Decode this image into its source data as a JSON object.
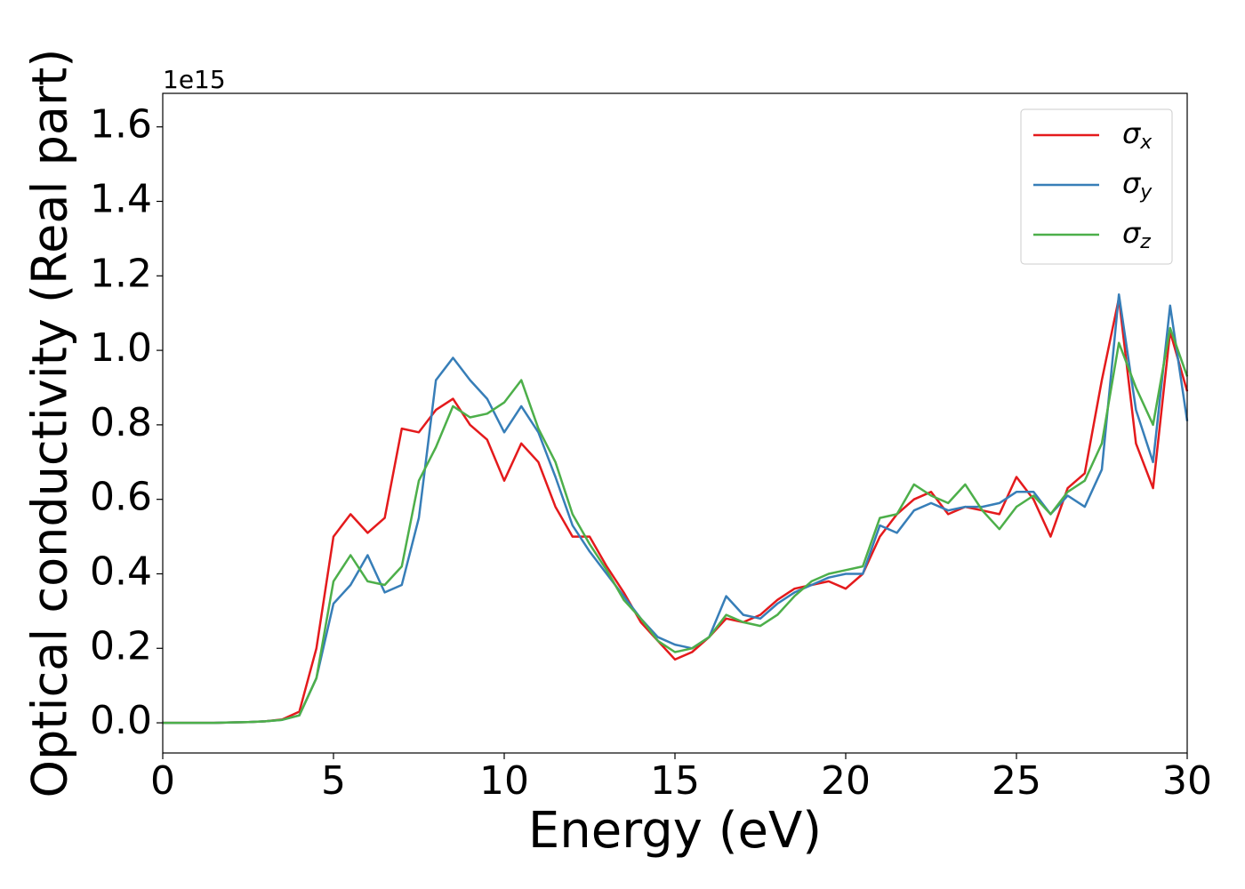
{
  "chart_data": {
    "type": "line",
    "xlabel": "Energy (eV)",
    "ylabel": "Optical conductivity (Real part)",
    "offset_label": "1e15",
    "x": [
      0,
      0.5,
      1,
      1.5,
      2,
      2.5,
      3,
      3.5,
      4,
      4.5,
      5,
      5.5,
      6,
      6.5,
      7,
      7.5,
      8,
      8.5,
      9,
      9.5,
      10,
      10.5,
      11,
      11.5,
      12,
      12.5,
      13,
      13.5,
      14,
      14.5,
      15,
      15.5,
      16,
      16.5,
      17,
      17.5,
      18,
      18.5,
      19,
      19.5,
      20,
      20.5,
      21,
      21.5,
      22,
      22.5,
      23,
      23.5,
      24,
      24.5,
      25,
      25.5,
      26,
      26.5,
      27,
      27.5,
      28,
      28.5,
      29,
      29.5,
      30
    ],
    "series": [
      {
        "name": "σ",
        "name_sub": "x",
        "color": "#e41a1c",
        "values": [
          0,
          0,
          0,
          0,
          0.001,
          0.002,
          0.004,
          0.009,
          0.03,
          0.2,
          0.5,
          0.56,
          0.51,
          0.55,
          0.79,
          0.78,
          0.84,
          0.87,
          0.8,
          0.76,
          0.65,
          0.75,
          0.7,
          0.58,
          0.5,
          0.5,
          0.42,
          0.35,
          0.27,
          0.22,
          0.17,
          0.19,
          0.23,
          0.28,
          0.27,
          0.29,
          0.33,
          0.36,
          0.37,
          0.38,
          0.36,
          0.4,
          0.5,
          0.56,
          0.6,
          0.62,
          0.56,
          0.58,
          0.57,
          0.56,
          0.66,
          0.6,
          0.5,
          0.63,
          0.67,
          0.92,
          1.14,
          0.75,
          0.63,
          1.05,
          0.89
        ]
      },
      {
        "name": "σ",
        "name_sub": "y",
        "color": "#377eb8",
        "values": [
          0,
          0,
          0,
          0,
          0.001,
          0.002,
          0.004,
          0.008,
          0.02,
          0.12,
          0.32,
          0.37,
          0.45,
          0.35,
          0.37,
          0.55,
          0.92,
          0.98,
          0.92,
          0.87,
          0.78,
          0.85,
          0.78,
          0.66,
          0.53,
          0.46,
          0.4,
          0.34,
          0.28,
          0.23,
          0.21,
          0.2,
          0.23,
          0.34,
          0.29,
          0.28,
          0.32,
          0.35,
          0.37,
          0.39,
          0.4,
          0.4,
          0.53,
          0.51,
          0.57,
          0.59,
          0.57,
          0.58,
          0.58,
          0.59,
          0.62,
          0.62,
          0.56,
          0.61,
          0.58,
          0.68,
          1.15,
          0.84,
          0.7,
          1.12,
          0.81
        ]
      },
      {
        "name": "σ",
        "name_sub": "z",
        "color": "#4daf4a",
        "values": [
          0,
          0,
          0,
          0,
          0.001,
          0.002,
          0.004,
          0.008,
          0.02,
          0.12,
          0.38,
          0.45,
          0.38,
          0.37,
          0.42,
          0.65,
          0.74,
          0.85,
          0.82,
          0.83,
          0.86,
          0.92,
          0.79,
          0.7,
          0.56,
          0.48,
          0.41,
          0.33,
          0.28,
          0.22,
          0.19,
          0.2,
          0.23,
          0.29,
          0.27,
          0.26,
          0.29,
          0.34,
          0.38,
          0.4,
          0.41,
          0.42,
          0.55,
          0.56,
          0.64,
          0.61,
          0.59,
          0.64,
          0.57,
          0.52,
          0.58,
          0.61,
          0.56,
          0.62,
          0.65,
          0.75,
          1.02,
          0.9,
          0.8,
          1.06,
          0.93
        ]
      }
    ],
    "xlim": [
      0,
      30
    ],
    "xticks": [
      0,
      5,
      10,
      15,
      20,
      25,
      30
    ],
    "ylim": [
      -0.081,
      1.69
    ],
    "yticks": [
      {
        "value": 0,
        "label": "0.0"
      },
      0.2,
      0.4,
      0.6,
      0.8,
      {
        "value": 1,
        "label": "1.0"
      },
      1.2,
      1.4,
      1.6
    ],
    "legend": "upper right"
  }
}
